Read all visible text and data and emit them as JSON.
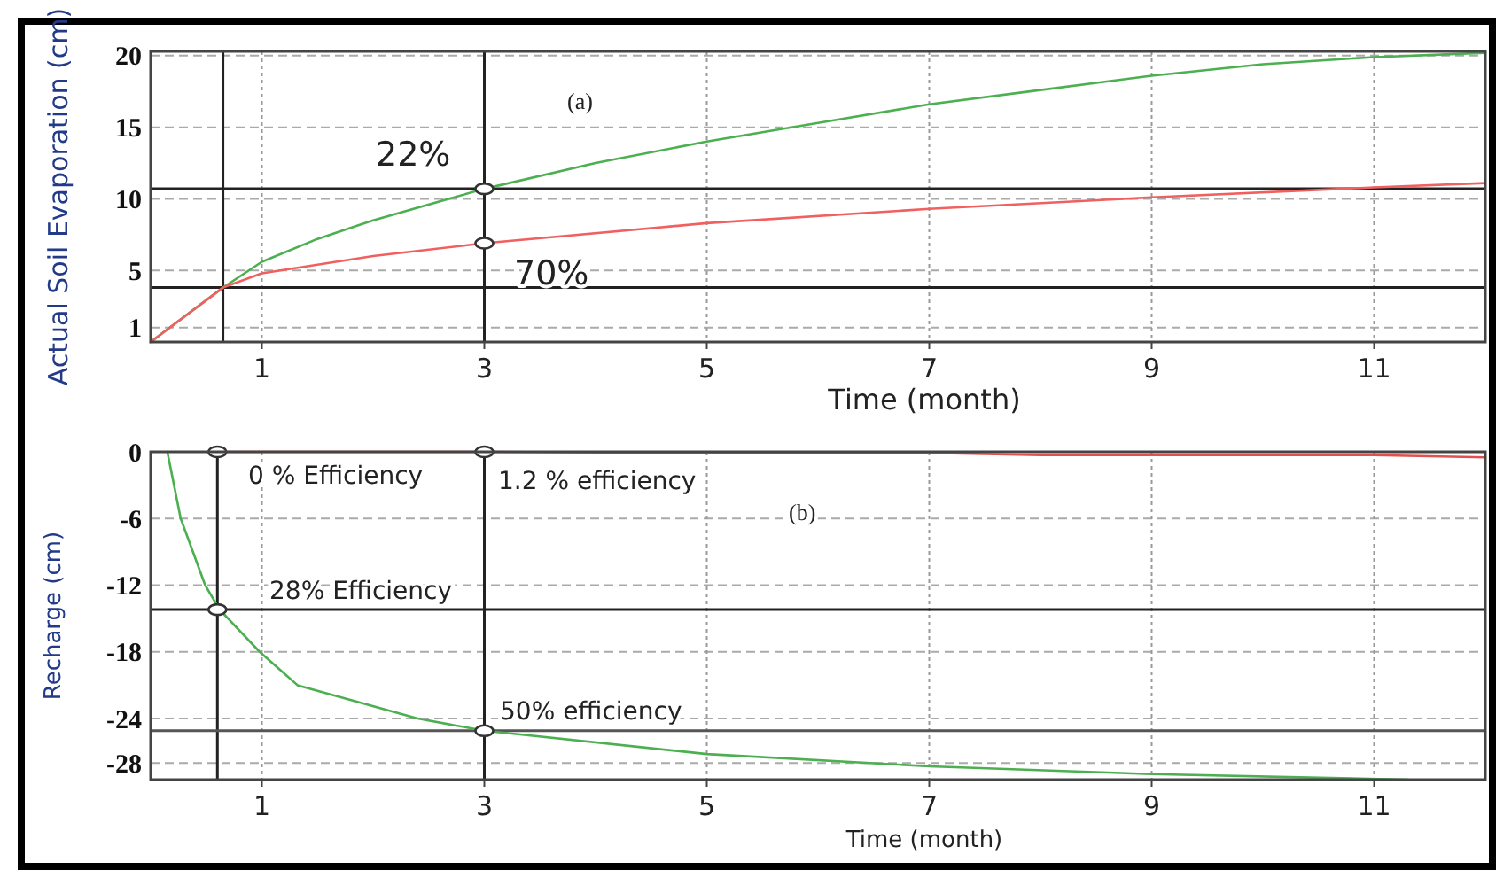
{
  "chart_data": [
    {
      "type": "line",
      "xlabel": "Time (month)",
      "ylabel": "Actual Soil Evaporation (cm)",
      "xlim": [
        0,
        12
      ],
      "xticks": [
        1,
        3,
        5,
        7,
        9,
        11
      ],
      "ylim": [
        0,
        20.3
      ],
      "yticks": [
        1,
        5,
        10,
        15,
        20
      ],
      "grid": true,
      "line_style": "solid",
      "series": [
        {
          "color": "#4caf50",
          "x": [
            0,
            0.65,
            1,
            1.5,
            2,
            3,
            4,
            5,
            6,
            7,
            8,
            9,
            10,
            11,
            12
          ],
          "values": [
            0,
            3.8,
            5.6,
            7.2,
            8.5,
            10.7,
            12.5,
            14.0,
            15.3,
            16.6,
            17.6,
            18.6,
            19.4,
            19.9,
            20.2
          ]
        },
        {
          "color": "#f06060",
          "x": [
            0,
            0.65,
            1,
            2,
            3,
            5,
            7,
            9,
            11,
            12
          ],
          "values": [
            0,
            3.8,
            4.8,
            6.0,
            6.9,
            8.3,
            9.3,
            10.1,
            10.8,
            11.1
          ]
        },
        {
          "type": "scatter",
          "marker": "circle",
          "color": "#333333",
          "x": [
            3,
            3
          ],
          "values": [
            10.7,
            6.9
          ]
        }
      ],
      "ref_lines": [
        {
          "axis": "x",
          "value": 0.65,
          "color": "#222222"
        },
        {
          "axis": "y",
          "value": 3.8,
          "color": "#222222"
        },
        {
          "axis": "x",
          "value": 3,
          "color": "#222222"
        },
        {
          "axis": "y",
          "value": 10.7,
          "color": "#222222"
        }
      ],
      "annotations": [
        "(a)",
        "22%",
        "70%"
      ]
    },
    {
      "type": "line",
      "xlabel": "Time (month)",
      "ylabel": "Recharge (cm)",
      "xlim": [
        0,
        12
      ],
      "xticks": [
        1,
        3,
        5,
        7,
        9,
        11
      ],
      "ylim": [
        -29.5,
        0
      ],
      "yticks": [
        0,
        -6,
        -12,
        -18,
        -24,
        -28
      ],
      "grid": true,
      "line_style": "solid",
      "series": [
        {
          "color": "#4caf50",
          "x": [
            0.15,
            0.27,
            0.49,
            0.62,
            0.98,
            1.32,
            2.4,
            3,
            5,
            7,
            9,
            11.3
          ],
          "values": [
            0,
            -6,
            -12,
            -14.2,
            -18,
            -21,
            -24,
            -25.1,
            -27.2,
            -28.3,
            -29,
            -29.5
          ]
        },
        {
          "color": "#e05050",
          "x": [
            0.6,
            3,
            5,
            7,
            8,
            9,
            11,
            12
          ],
          "values": [
            0,
            0,
            -0.1,
            -0.1,
            -0.3,
            -0.3,
            -0.3,
            -0.5
          ]
        },
        {
          "type": "scatter",
          "marker": "circle",
          "color": "#333333",
          "x": [
            0.6,
            0.6,
            3,
            3
          ],
          "values": [
            0,
            -14.2,
            0,
            -25.1
          ]
        }
      ],
      "ref_lines": [
        {
          "axis": "x",
          "value": 0.6,
          "color": "#222222"
        },
        {
          "axis": "x",
          "value": 3,
          "color": "#222222"
        },
        {
          "axis": "y",
          "value": -14.2,
          "color": "#222222"
        },
        {
          "axis": "y",
          "value": -25.1,
          "color": "#555555"
        }
      ],
      "annotations": [
        "(b)",
        "0 % Efficiency",
        "1.2 % efficiency",
        "28% Efficiency",
        "50% efficiency"
      ]
    }
  ]
}
